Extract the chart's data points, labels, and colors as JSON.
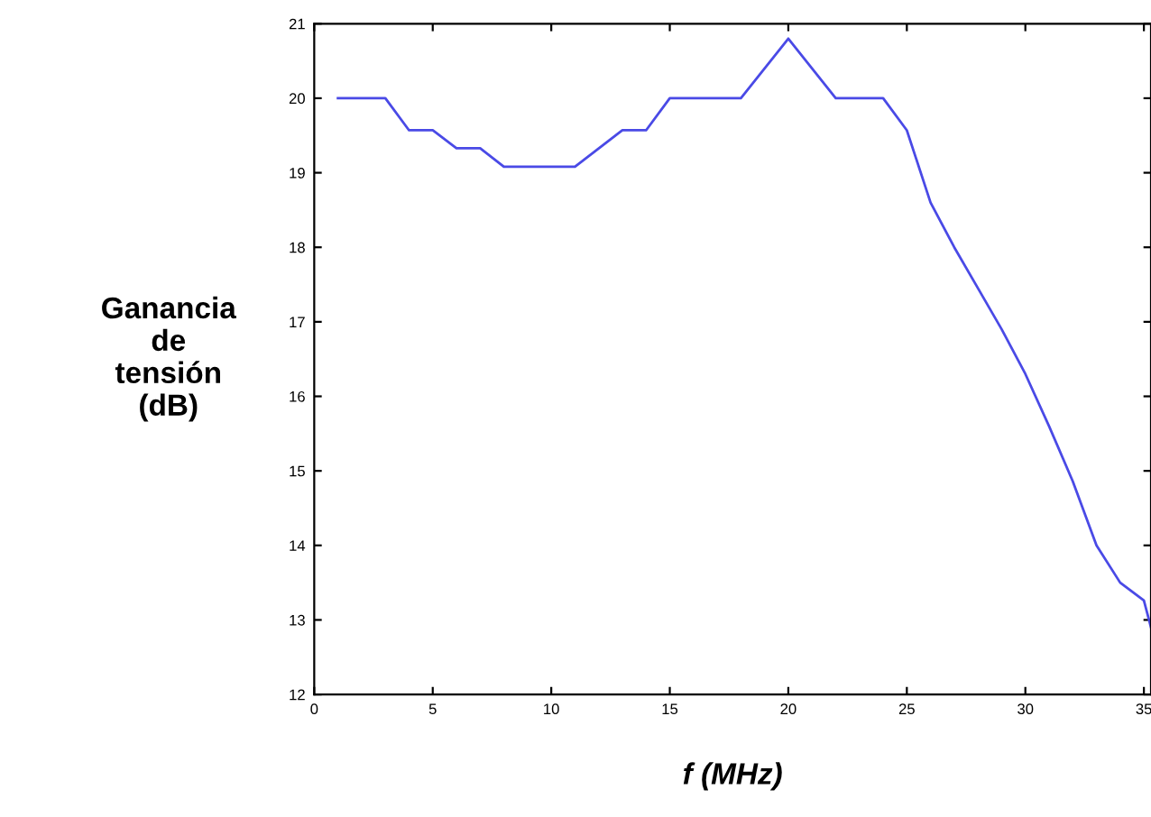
{
  "chart_data": {
    "type": "line",
    "xlabel": "f (MHz)",
    "ylabel": "Ganancia\nde\ntensión\n(dB)",
    "x": [
      1,
      3,
      4,
      5,
      6,
      7,
      8,
      11,
      13,
      14,
      15,
      18,
      20,
      22,
      24,
      25,
      26,
      27,
      28,
      29,
      30,
      31,
      32,
      33,
      34,
      35,
      35.3
    ],
    "series": [
      {
        "color": "#4a4ae6",
        "values": [
          20,
          20,
          19.57,
          19.57,
          19.33,
          19.33,
          19.08,
          19.08,
          19.57,
          19.57,
          20,
          20,
          20.8,
          20,
          20,
          19.57,
          18.6,
          18.0,
          17.45,
          16.9,
          16.3,
          15.6,
          14.86,
          14.0,
          13.5,
          13.26,
          12.9
        ]
      }
    ],
    "xlim": [
      0,
      35.3
    ],
    "ylim": [
      12,
      21
    ],
    "xticks": [
      0,
      5,
      10,
      15,
      20,
      25,
      30,
      35
    ],
    "yticks": [
      12,
      13,
      14,
      15,
      16,
      17,
      18,
      19,
      20,
      21
    ],
    "grid": false,
    "marker": "none",
    "line_style": "solid"
  }
}
